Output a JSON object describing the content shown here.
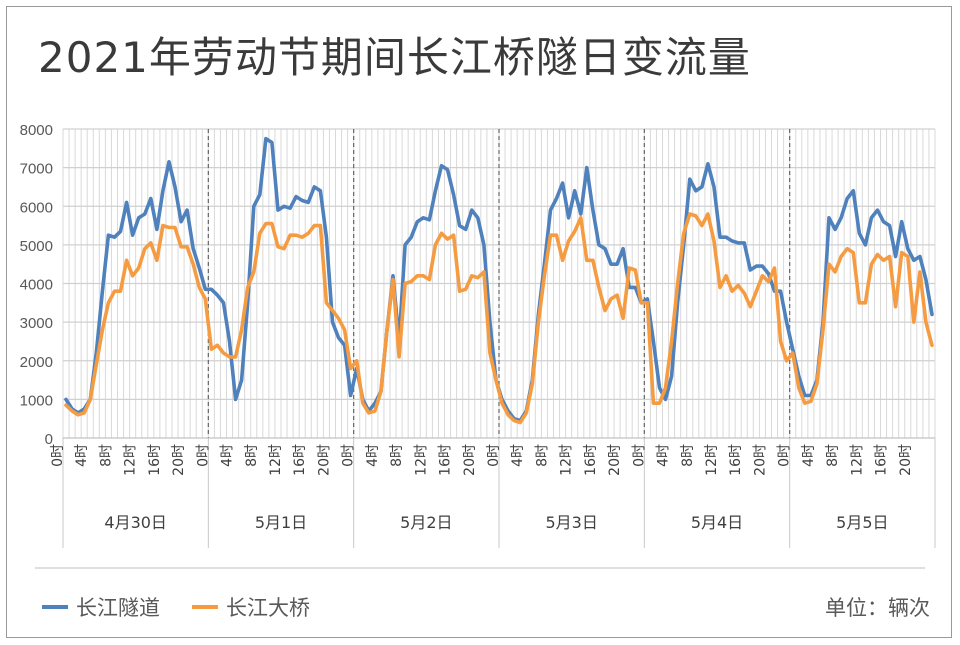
{
  "title": "2021年劳动节期间长江桥隧日变流量",
  "unit_label": "单位：辆次",
  "chart_data": {
    "type": "line",
    "title": "2021年劳动节期间长江桥隧日变流量",
    "xlabel": "",
    "ylabel": "",
    "ylim": [
      0,
      8000
    ],
    "yticks": [
      0,
      1000,
      2000,
      3000,
      4000,
      5000,
      6000,
      7000,
      8000
    ],
    "grid": true,
    "legend_position": "bottom-left",
    "groups": [
      "4月30日",
      "5月1日",
      "5月2日",
      "5月3日",
      "5月4日",
      "5月5日"
    ],
    "hour_tick_labels": [
      "0时",
      "4时",
      "8时",
      "12时",
      "16时",
      "20时",
      "0时",
      "4时",
      "8时",
      "12时",
      "16时",
      "20时",
      "0时",
      "4时",
      "8时",
      "12时",
      "16时",
      "20时",
      "0时",
      "4时",
      "8时",
      "12时",
      "16时",
      "20时",
      "0时",
      "4时",
      "8时",
      "12时",
      "16时",
      "20时",
      "0时",
      "4时",
      "8时",
      "12时",
      "16时",
      "20时"
    ],
    "series": [
      {
        "name": "长江隧道",
        "color": "#4f81bd",
        "values": [
          1000,
          750,
          650,
          750,
          1000,
          2200,
          3800,
          5250,
          5200,
          5350,
          6100,
          5250,
          5700,
          5800,
          6200,
          5400,
          6400,
          7150,
          6500,
          5600,
          5900,
          4900,
          4400,
          3850,
          3850,
          3700,
          3500,
          2500,
          1000,
          1500,
          3500,
          6000,
          6300,
          7750,
          7650,
          5900,
          6000,
          5950,
          6250,
          6150,
          6100,
          6500,
          6400,
          5200,
          3000,
          2600,
          2400,
          1100,
          1800,
          1000,
          700,
          900,
          1200,
          2800,
          4200,
          2500,
          5000,
          5200,
          5600,
          5700,
          5650,
          6400,
          7050,
          6950,
          6300,
          5500,
          5400,
          5900,
          5700,
          5000,
          3000,
          1500,
          1000,
          700,
          500,
          450,
          700,
          1500,
          3200,
          4500,
          5900,
          6200,
          6600,
          5700,
          6400,
          5800,
          7000,
          5900,
          5000,
          4900,
          4500,
          4500,
          4900,
          3900,
          3900,
          3500,
          3600,
          2500,
          1300,
          1000,
          1600,
          3500,
          5000,
          6700,
          6400,
          6500,
          7100,
          6500,
          5200,
          5200,
          5100,
          5050,
          5050,
          4350,
          4450,
          4450,
          4250,
          3800,
          3800,
          3000,
          2300,
          1600,
          1100,
          1100,
          1500,
          3000,
          5700,
          5400,
          5700,
          6200,
          6400,
          5300,
          5000,
          5700,
          5900,
          5600,
          5500,
          4700,
          5600,
          4900,
          4600,
          4700,
          4100,
          3200
        ]
      },
      {
        "name": "长江大桥",
        "color": "#f59c42",
        "values": [
          850,
          700,
          600,
          650,
          1000,
          1900,
          2800,
          3500,
          3800,
          3800,
          4600,
          4200,
          4400,
          4900,
          5050,
          4600,
          5500,
          5450,
          5450,
          4950,
          4950,
          4500,
          3900,
          3600,
          2300,
          2400,
          2200,
          2100,
          2100,
          2800,
          3900,
          4300,
          5300,
          5550,
          5550,
          4950,
          4900,
          5250,
          5250,
          5200,
          5300,
          5500,
          5500,
          3500,
          3300,
          3100,
          2800,
          1800,
          2000,
          900,
          650,
          700,
          1200,
          2800,
          4100,
          2100,
          4000,
          4050,
          4200,
          4200,
          4100,
          5000,
          5300,
          5150,
          5250,
          3800,
          3850,
          4200,
          4150,
          4300,
          2200,
          1500,
          900,
          600,
          450,
          400,
          650,
          1400,
          3000,
          4200,
          5250,
          5250,
          4600,
          5100,
          5350,
          5700,
          4600,
          4600,
          3900,
          3300,
          3600,
          3700,
          3100,
          4400,
          4350,
          3500,
          3500,
          900,
          900,
          1300,
          2500,
          4000,
          5300,
          5800,
          5750,
          5500,
          5800,
          5100,
          3900,
          4200,
          3800,
          3950,
          3750,
          3400,
          3800,
          4200,
          4050,
          4400,
          2500,
          2000,
          2200,
          1300,
          900,
          950,
          1400,
          2800,
          4500,
          4300,
          4700,
          4900,
          4800,
          3500,
          3500,
          4500,
          4750,
          4600,
          4700,
          3400,
          4800,
          4700,
          3000,
          4300,
          3000,
          2400
        ]
      }
    ]
  }
}
